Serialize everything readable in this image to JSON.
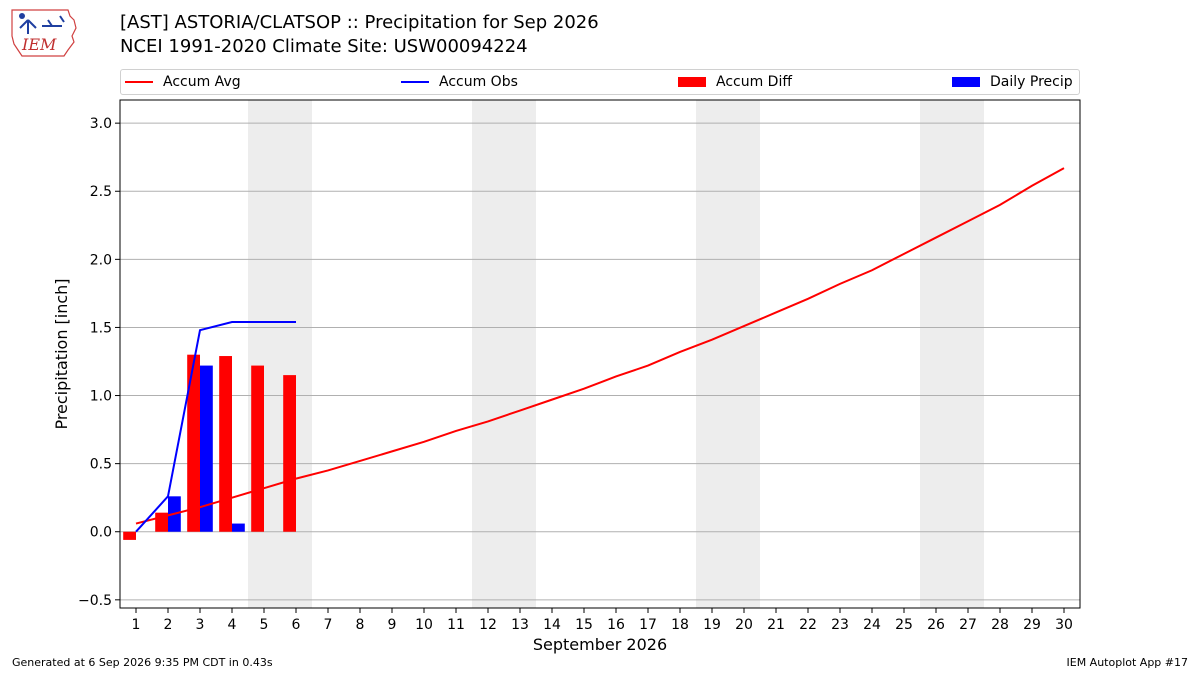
{
  "header": {
    "title_line1": "[AST] ASTORIA/CLATSOP :: Precipitation for Sep 2026",
    "title_line2": "NCEI 1991-2020 Climate Site: USW00094224",
    "logo_text": "IEM"
  },
  "footer": {
    "left": "Generated at 6 Sep 2026 9:35 PM CDT in 0.43s",
    "right": "IEM Autoplot App #17"
  },
  "colors": {
    "avg": "#ff0000",
    "obs": "#0000ff",
    "diff": "#ff0000",
    "daily": "#0000ff",
    "weekend": "#ededed",
    "grid": "#b0b0b0"
  },
  "chart_data": {
    "type": "bar",
    "xlabel": "September 2026",
    "ylabel": "Precipitation [inch]",
    "ylim": [
      -0.56,
      3.17
    ],
    "xlim": [
      0.5,
      30.5
    ],
    "grid": "horizontal",
    "legend_placement": "top",
    "yticks": [
      -0.5,
      0.0,
      0.5,
      1.0,
      1.5,
      2.0,
      2.5,
      3.0
    ],
    "ytick_labels": [
      "−0.5",
      "0.0",
      "0.5",
      "1.0",
      "1.5",
      "2.0",
      "2.5",
      "3.0"
    ],
    "days": [
      1,
      2,
      3,
      4,
      5,
      6,
      7,
      8,
      9,
      10,
      11,
      12,
      13,
      14,
      15,
      16,
      17,
      18,
      19,
      20,
      21,
      22,
      23,
      24,
      25,
      26,
      27,
      28,
      29,
      30
    ],
    "weekend_days": [
      5,
      6,
      12,
      13,
      19,
      20,
      26,
      27
    ],
    "series": [
      {
        "name": "Accum Avg",
        "kind": "line",
        "x": [
          1,
          2,
          3,
          4,
          5,
          6,
          7,
          8,
          9,
          10,
          11,
          12,
          13,
          14,
          15,
          16,
          17,
          18,
          19,
          20,
          21,
          22,
          23,
          24,
          25,
          26,
          27,
          28,
          29,
          30
        ],
        "values": [
          0.06,
          0.12,
          0.18,
          0.25,
          0.32,
          0.39,
          0.45,
          0.52,
          0.59,
          0.66,
          0.74,
          0.81,
          0.89,
          0.97,
          1.05,
          1.14,
          1.22,
          1.32,
          1.41,
          1.51,
          1.61,
          1.71,
          1.82,
          1.92,
          2.04,
          2.16,
          2.28,
          2.4,
          2.54,
          2.67
        ]
      },
      {
        "name": "Accum Obs",
        "kind": "line",
        "x": [
          1,
          2,
          3,
          4,
          5,
          6
        ],
        "values": [
          0.0,
          0.26,
          1.48,
          1.54,
          1.54,
          1.54
        ]
      },
      {
        "name": "Accum Diff",
        "kind": "bar",
        "x": [
          1,
          2,
          3,
          4,
          5,
          6
        ],
        "values": [
          -0.06,
          0.14,
          1.3,
          1.29,
          1.22,
          1.15
        ]
      },
      {
        "name": "Daily Precip",
        "kind": "bar",
        "x": [
          1,
          2,
          3,
          4,
          5,
          6
        ],
        "values": [
          0.0,
          0.26,
          1.22,
          0.06,
          0.0,
          0.0
        ]
      }
    ]
  }
}
